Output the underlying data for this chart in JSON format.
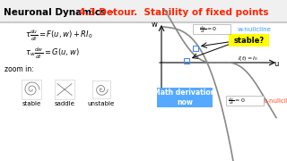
{
  "title_black": "Neuronal Dynamics – ",
  "title_red": "4.3 Detour.  Stability of fixed points",
  "bg_color": "#ffffff",
  "header_bg": "#ffffff",
  "eq1": "\\tau \\frac{du}{dt} = F(u,w) + RI_0",
  "eq2": "\\tau_w \\frac{dw}{dt} = G(u,w)",
  "zoom_label": "zoom in:",
  "stable_label": "stable",
  "saddle_label": "saddle",
  "unstable_label": "unstable",
  "w_label": "w",
  "u_label": "u",
  "w_nullcline_label": "w-nullcline",
  "u_nullcline_label": "u-nullcline",
  "stable_q_label": "stable?",
  "math_label": "Math derivation\nnow",
  "i_label": "I(t)=I_0",
  "dw_eq": "\\frac{dw}{dt} = 0",
  "du_eq": "\\frac{du}{dt} = 0"
}
